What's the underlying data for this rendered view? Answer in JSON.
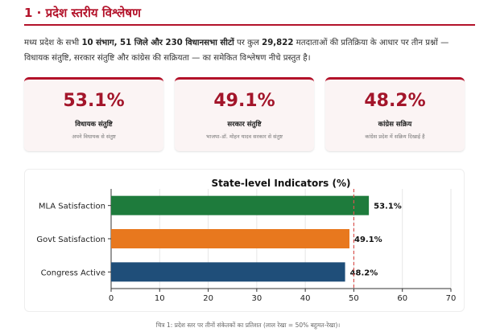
{
  "section": {
    "title": "1 · प्रदेश स्तरीय विश्लेषण"
  },
  "intro": {
    "part1": "मध्य प्रदेश के सभी ",
    "bold1": "10 संभाग, 51 जिले और 230 विधानसभा सीटों",
    "part2": " पर कुल ",
    "bold2": "29,822",
    "part3": " मतदाताओं की प्रतिक्रिया के आधार पर तीन प्रश्नों — विधायक संतुष्टि, सरकार संतुष्टि और कांग्रेस की सक्रियता — का समेकित विश्लेषण नीचे प्रस्तुत है।"
  },
  "cards": [
    {
      "value": "53.1%",
      "label": "विधायक संतुष्टि",
      "sub": "अपने विधायक से संतुष्ट"
    },
    {
      "value": "49.1%",
      "label": "सरकार संतुष्टि",
      "sub": "भाजपा–डॉ. मोहन यादव सरकार से संतुष्ट"
    },
    {
      "value": "48.2%",
      "label": "कांग्रेस सक्रिय",
      "sub": "कांग्रेस प्रदेश में सक्रिय दिखाई है"
    }
  ],
  "chart_data": {
    "type": "bar",
    "orientation": "horizontal",
    "title": "State-level Indicators (%)",
    "categories": [
      "MLA Satisfaction",
      "Govt Satisfaction",
      "Congress Active"
    ],
    "values": [
      53.1,
      49.1,
      48.2
    ],
    "value_labels": [
      "53.1%",
      "49.1%",
      "48.2%"
    ],
    "colors": [
      "#1e7b3c",
      "#e8781e",
      "#1f4e79"
    ],
    "xlim": [
      0,
      70
    ],
    "xticks": [
      "0",
      "10",
      "20",
      "30",
      "40",
      "50",
      "60",
      "70"
    ],
    "reference_line": {
      "x": 50,
      "color": "#d9534f",
      "style": "dashed"
    },
    "grid": true
  },
  "caption": "चित्र 1: प्रदेश स्तर पर तीनों संकेतकों का प्रतिशत (लाल रेखा = 50% बहुमत-रेखा)।"
}
